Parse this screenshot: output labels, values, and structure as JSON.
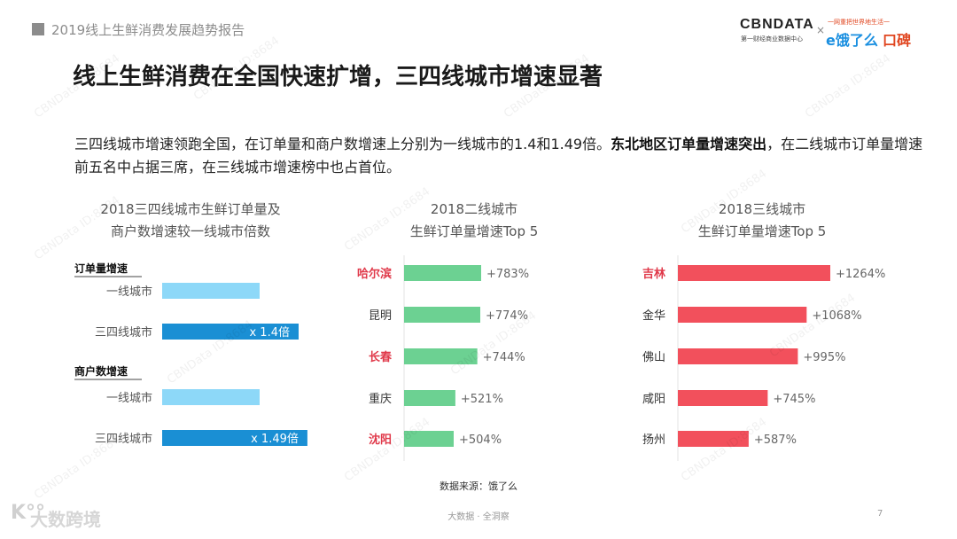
{
  "header": {
    "report_title": "2019线上生鲜消费发展趋势报告",
    "brand_cbn": "CBNDATA",
    "brand_cbn_sub": "第一财经商业数据中心",
    "brand_x": "×",
    "brand_tagline": "一网重把世界地生活一",
    "brand_ele": "e饿了么",
    "brand_koubei": "口碑"
  },
  "main_title": "线上生鲜消费在全国快速扩增，三四线城市增速显著",
  "summary": {
    "part1": "三四线城市增速领跑全国，在订单量和商户数增速上分别为一线城市的1.4和1.49倍。",
    "bold": "东北地区订单量增速突出",
    "part2": "，在二线城市订单量增速前五名中占据三席，在三线城市增速榜中也占首位。"
  },
  "chart_data": [
    {
      "type": "bar",
      "title_line1": "2018三四线城市生鲜订单量及",
      "title_line2": "商户数增速较一线城市倍数",
      "groups": [
        {
          "label": "订单量增速",
          "categories": [
            "一线城市",
            "三四线城市"
          ],
          "values": [
            1,
            1.4
          ],
          "value_labels": [
            "",
            "x 1.4倍"
          ]
        },
        {
          "label": "商户数增速",
          "categories": [
            "一线城市",
            "三四线城市"
          ],
          "values": [
            1,
            1.49
          ],
          "value_labels": [
            "",
            "x 1.49倍"
          ]
        }
      ],
      "colors": {
        "base": "#8dd8f8",
        "highlight": "#1a8fd4"
      }
    },
    {
      "type": "bar",
      "title_line1": "2018二线城市",
      "title_line2": "生鲜订单量增速Top 5",
      "categories": [
        "哈尔滨",
        "昆明",
        "长春",
        "重庆",
        "沈阳"
      ],
      "values": [
        783,
        774,
        744,
        521,
        504
      ],
      "value_labels": [
        "+783%",
        "+774%",
        "+744%",
        "+521%",
        "+504%"
      ],
      "highlighted": [
        true,
        false,
        true,
        false,
        true
      ],
      "bar_color": "#6cd192",
      "highlight_text_color": "#e0394a"
    },
    {
      "type": "bar",
      "title_line1": "2018三线城市",
      "title_line2": "生鲜订单量增速Top 5",
      "categories": [
        "吉林",
        "金华",
        "佛山",
        "咸阳",
        "扬州"
      ],
      "values": [
        1264,
        1068,
        995,
        745,
        587
      ],
      "value_labels": [
        "+1264%",
        "+1068%",
        "+995%",
        "+745%",
        "+587%"
      ],
      "highlighted": [
        true,
        false,
        false,
        false,
        false
      ],
      "bar_color": "#f2505c",
      "highlight_text_color": "#e0394a"
    }
  ],
  "source": "数据来源：饿了么",
  "footer": "大数据 · 全洞察",
  "page_number": "7",
  "watermark_logo": "K°°",
  "watermark_text": "大数跨境",
  "bg_watermark": "CBNData ID:8684"
}
